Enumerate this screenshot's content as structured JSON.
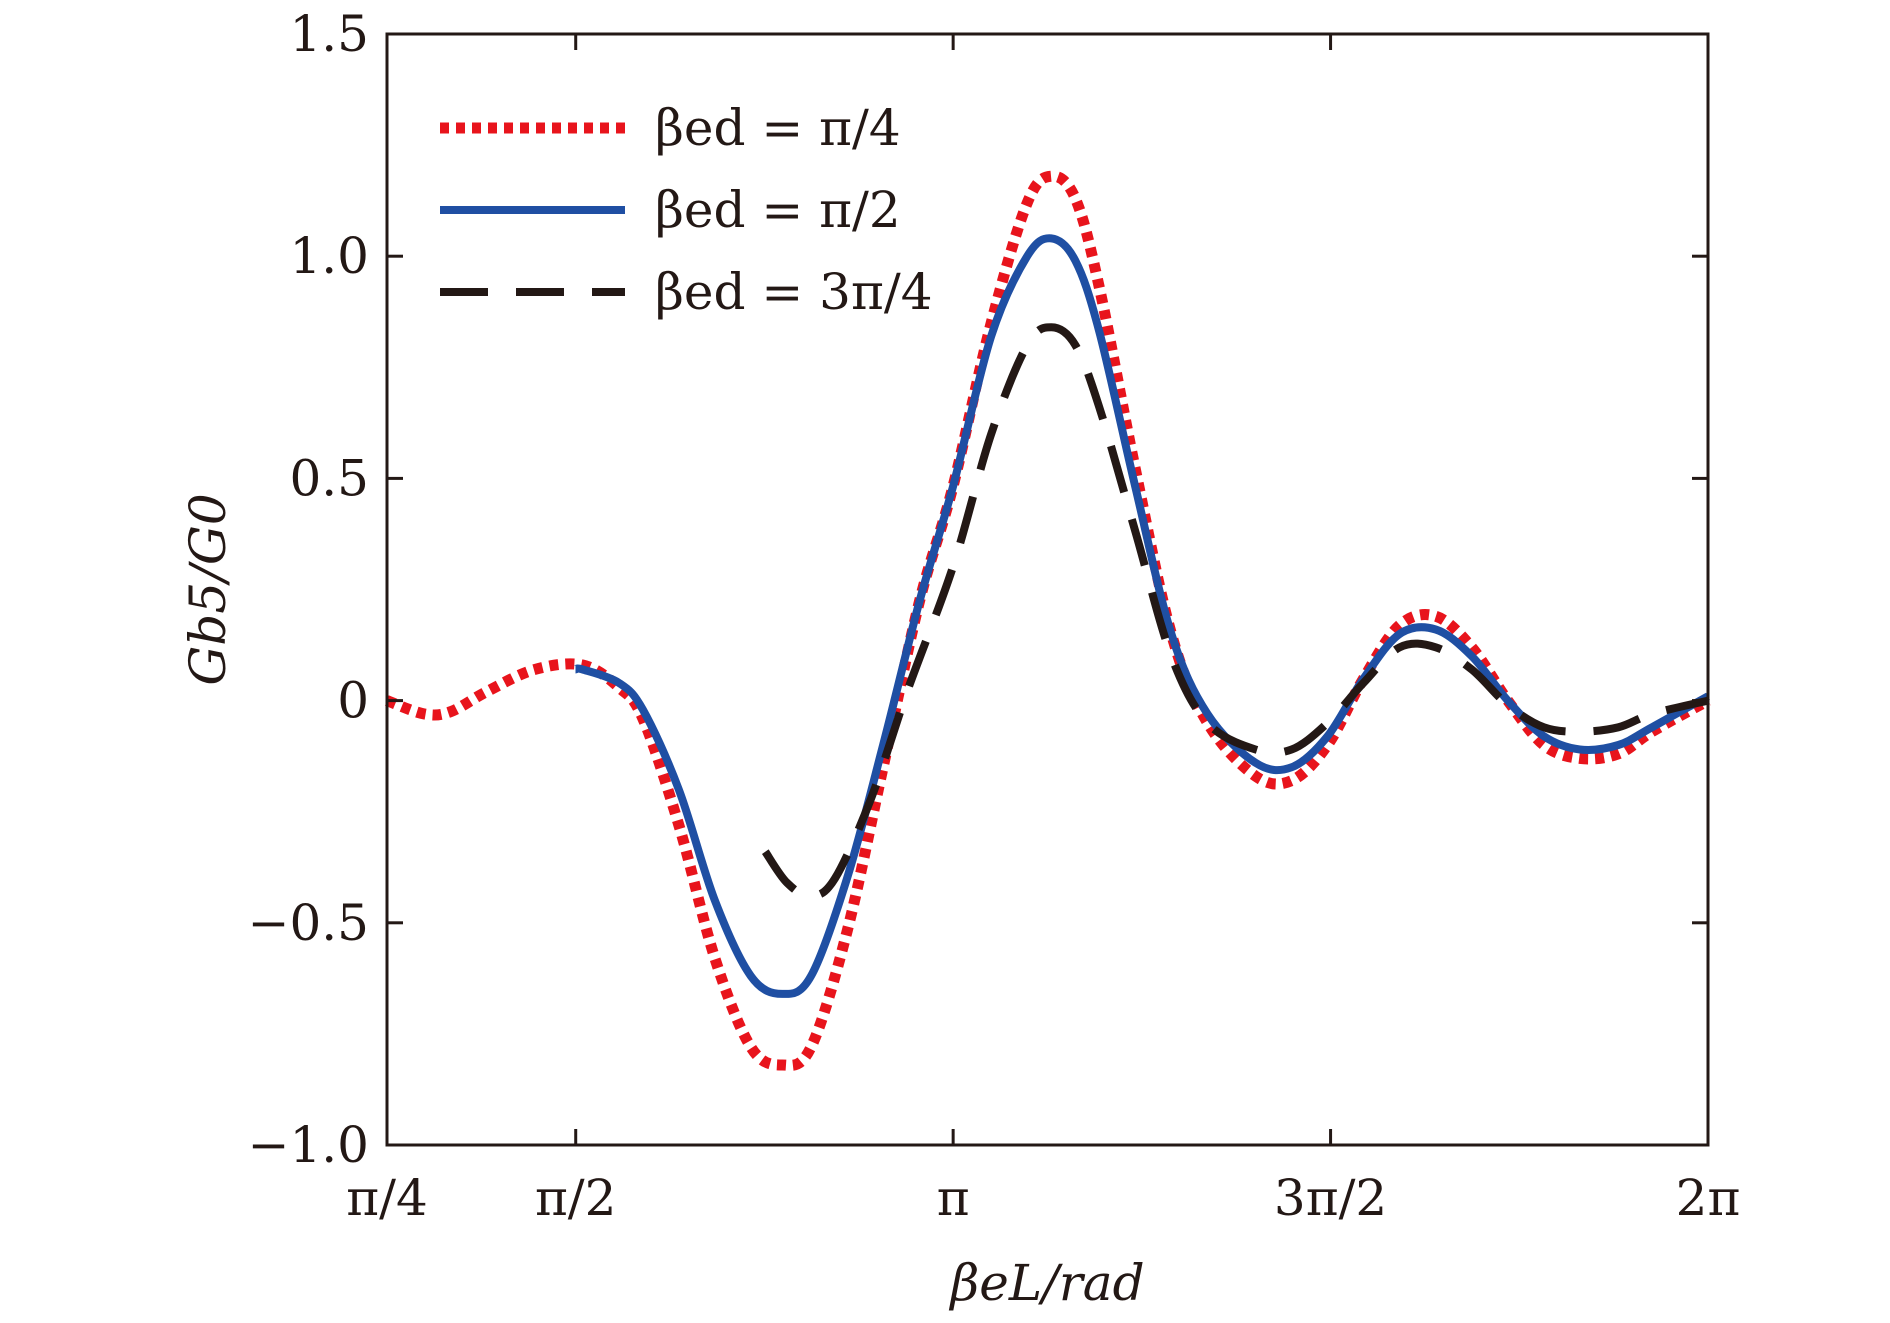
{
  "chart_data": {
    "type": "line",
    "xlabel": "βeL/rad",
    "ylabel": "Gb5/G0",
    "xlim": [
      0.785398,
      6.283185
    ],
    "ylim": [
      -1.0,
      1.5
    ],
    "xticks": [
      {
        "value": 0.785398,
        "label": "π/4"
      },
      {
        "value": 1.570796,
        "label": "π/2"
      },
      {
        "value": 3.141593,
        "label": "π"
      },
      {
        "value": 4.712389,
        "label": "3π/2"
      },
      {
        "value": 6.283185,
        "label": "2π"
      }
    ],
    "yticks": [
      {
        "value": 1.5,
        "label": "1.5"
      },
      {
        "value": 1.0,
        "label": "1.0"
      },
      {
        "value": 0.5,
        "label": "0.5"
      },
      {
        "value": 0.0,
        "label": "0"
      },
      {
        "value": -0.5,
        "label": "−0.5"
      },
      {
        "value": -1.0,
        "label": "−1.0"
      }
    ],
    "legend_position": "top-left",
    "grid": false,
    "series": [
      {
        "name": "βed = π/4",
        "color": "#e8141c",
        "style": "dotted",
        "x": [
          0.785,
          0.94,
          1.05,
          1.2,
          1.4,
          1.6,
          1.75,
          1.85,
          2.0,
          2.15,
          2.3,
          2.43,
          2.55,
          2.7,
          2.85,
          3.0,
          3.14,
          3.3,
          3.45,
          3.55,
          3.65,
          3.75,
          3.9,
          4.05,
          4.2,
          4.4,
          4.55,
          4.7,
          4.85,
          5.0,
          5.15,
          5.3,
          5.45,
          5.6,
          5.75,
          5.91,
          6.05,
          6.283
        ],
        "y": [
          0.0,
          -0.03,
          -0.025,
          0.02,
          0.07,
          0.08,
          0.03,
          -0.04,
          -0.28,
          -0.58,
          -0.78,
          -0.82,
          -0.78,
          -0.52,
          -0.15,
          0.22,
          0.48,
          0.85,
          1.12,
          1.18,
          1.13,
          0.93,
          0.52,
          0.15,
          -0.05,
          -0.17,
          -0.18,
          -0.1,
          0.05,
          0.17,
          0.19,
          0.12,
          0.0,
          -0.1,
          -0.13,
          -0.12,
          -0.07,
          0.0
        ]
      },
      {
        "name": "βed = π/2",
        "color": "#1f4fa3",
        "style": "solid",
        "x": [
          1.57,
          1.6,
          1.75,
          1.85,
          2.0,
          2.15,
          2.3,
          2.43,
          2.55,
          2.7,
          2.85,
          3.0,
          3.14,
          3.3,
          3.45,
          3.55,
          3.65,
          3.75,
          3.9,
          4.05,
          4.2,
          4.4,
          4.55,
          4.7,
          4.85,
          5.0,
          5.15,
          5.3,
          5.45,
          5.6,
          5.75,
          5.91,
          6.05,
          6.283
        ],
        "y": [
          0.07,
          0.07,
          0.04,
          -0.02,
          -0.2,
          -0.45,
          -0.62,
          -0.66,
          -0.62,
          -0.4,
          -0.1,
          0.22,
          0.48,
          0.82,
          1.0,
          1.04,
          0.99,
          0.83,
          0.48,
          0.15,
          -0.03,
          -0.14,
          -0.15,
          -0.08,
          0.05,
          0.15,
          0.16,
          0.1,
          0.0,
          -0.08,
          -0.11,
          -0.1,
          -0.06,
          0.01
        ]
      },
      {
        "name": "βed = 3π/4",
        "color": "#231815",
        "style": "dashed",
        "x": [
          2.36,
          2.45,
          2.55,
          2.65,
          2.8,
          2.95,
          3.14,
          3.3,
          3.45,
          3.55,
          3.65,
          3.75,
          3.9,
          4.05,
          4.2,
          4.4,
          4.55,
          4.7,
          4.85,
          5.0,
          5.15,
          5.3,
          5.45,
          5.6,
          5.75,
          5.91,
          6.05,
          6.283
        ],
        "y": [
          -0.34,
          -0.41,
          -0.44,
          -0.4,
          -0.22,
          0.02,
          0.3,
          0.6,
          0.8,
          0.84,
          0.8,
          0.66,
          0.38,
          0.1,
          -0.05,
          -0.11,
          -0.11,
          -0.05,
          0.04,
          0.12,
          0.12,
          0.07,
          -0.01,
          -0.06,
          -0.07,
          -0.06,
          -0.03,
          0.0
        ]
      }
    ]
  }
}
